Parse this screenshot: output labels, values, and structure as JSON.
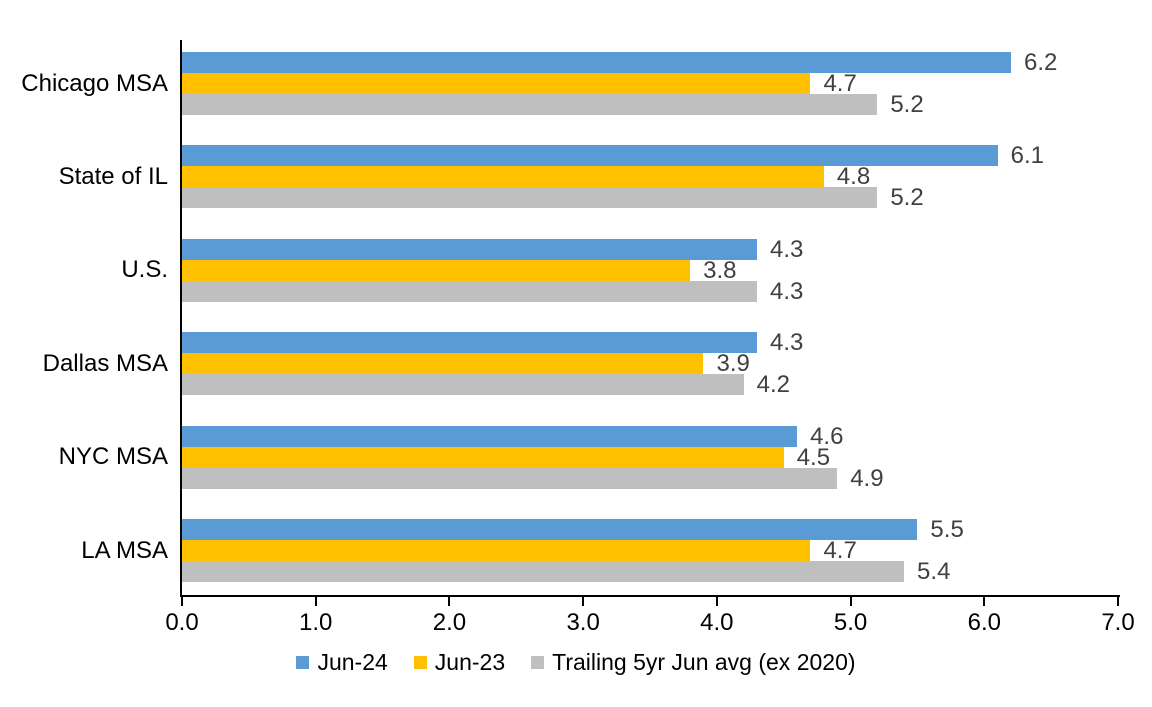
{
  "chart_data": {
    "type": "bar",
    "orientation": "horizontal",
    "title": "",
    "categories": [
      "Chicago MSA",
      "State of IL",
      "U.S.",
      "Dallas MSA",
      "NYC MSA",
      "LA MSA"
    ],
    "series": [
      {
        "name": "Jun-24",
        "color": "#5B9BD5",
        "values": [
          6.2,
          6.1,
          4.3,
          4.3,
          4.6,
          5.5
        ]
      },
      {
        "name": "Jun-23",
        "color": "#FFC000",
        "values": [
          4.7,
          4.8,
          3.8,
          3.9,
          4.5,
          4.7
        ]
      },
      {
        "name": "Trailing 5yr Jun avg (ex 2020)",
        "color": "#BFBFBF",
        "values": [
          5.2,
          5.2,
          4.3,
          4.2,
          4.9,
          5.4
        ]
      }
    ],
    "xlim": [
      0.0,
      7.0
    ],
    "x_ticks": [
      "0.0",
      "1.0",
      "2.0",
      "3.0",
      "4.0",
      "5.0",
      "6.0",
      "7.0"
    ],
    "value_label_decimals": 1,
    "grid": false,
    "legend_position": "bottom",
    "data_labels": true
  },
  "colors": {
    "axis": "#000000",
    "data_label": "#404040",
    "category_label": "#000000",
    "tick_label": "#000000",
    "background": "#FFFFFF"
  }
}
